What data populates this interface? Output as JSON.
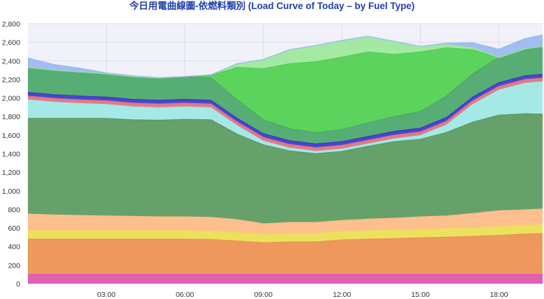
{
  "chart_data": {
    "type": "area",
    "title": "今日用電曲線圖-依燃料類別 (Load Curve of Today – by Fuel Type)",
    "stacked": true,
    "xlabel": "",
    "ylabel": "",
    "ylim": [
      0,
      2800
    ],
    "yticks": [
      0,
      200,
      400,
      600,
      800,
      1000,
      1200,
      1400,
      1600,
      1800,
      2000,
      2200,
      2400,
      2600,
      2800
    ],
    "xlim": [
      0.0,
      19.67
    ],
    "xticks": [
      3,
      6,
      9,
      12,
      15,
      18
    ],
    "xtick_labels": [
      "03:00",
      "06:00",
      "09:00",
      "12:00",
      "15:00",
      "18:00"
    ],
    "grid": true,
    "x": [
      0.0,
      1.0,
      2.0,
      3.0,
      4.0,
      5.0,
      6.0,
      7.0,
      8.0,
      9.0,
      10.0,
      11.0,
      12.0,
      13.0,
      14.0,
      15.0,
      16.0,
      17.0,
      18.0,
      19.0,
      19.67
    ],
    "series": [
      {
        "color": "#dd55aa",
        "values": [
          100,
          100,
          100,
          100,
          100,
          100,
          100,
          100,
          100,
          100,
          100,
          100,
          100,
          100,
          100,
          100,
          100,
          100,
          100,
          100,
          100
        ]
      },
      {
        "color": "#ee9050",
        "values": [
          380,
          380,
          380,
          380,
          380,
          380,
          380,
          375,
          360,
          340,
          350,
          350,
          370,
          380,
          385,
          395,
          400,
          410,
          420,
          435,
          440
        ]
      },
      {
        "color": "#ece050",
        "values": [
          90,
          90,
          90,
          90,
          90,
          90,
          90,
          90,
          90,
          90,
          90,
          90,
          90,
          90,
          90,
          90,
          90,
          90,
          95,
          95,
          95
        ]
      },
      {
        "color": "#ffbb85",
        "values": [
          180,
          170,
          165,
          160,
          155,
          150,
          150,
          150,
          140,
          115,
          120,
          120,
          120,
          125,
          130,
          135,
          140,
          155,
          170,
          165,
          170
        ]
      },
      {
        "color": "#5a9a5e",
        "values": [
          1030,
          1040,
          1045,
          1050,
          1040,
          1040,
          1050,
          1050,
          920,
          850,
          770,
          740,
          745,
          785,
          825,
          835,
          900,
          985,
          1030,
          1035,
          1020
        ]
      },
      {
        "color": "#9ee8e4",
        "values": [
          200,
          175,
          160,
          150,
          140,
          135,
          135,
          130,
          90,
          40,
          30,
          25,
          25,
          25,
          30,
          40,
          80,
          190,
          270,
          330,
          350
        ]
      },
      {
        "color": "#e07080",
        "values": [
          40,
          40,
          40,
          40,
          40,
          40,
          40,
          40,
          40,
          40,
          40,
          40,
          40,
          40,
          40,
          40,
          40,
          40,
          40,
          40,
          40
        ]
      },
      {
        "color": "#3838c8",
        "values": [
          40,
          40,
          40,
          40,
          40,
          40,
          40,
          40,
          40,
          40,
          40,
          40,
          40,
          40,
          40,
          40,
          40,
          40,
          40,
          40,
          40
        ]
      },
      {
        "color": "#4aa868",
        "values": [
          270,
          265,
          260,
          250,
          245,
          240,
          245,
          240,
          200,
          150,
          130,
          120,
          130,
          145,
          160,
          180,
          230,
          250,
          270,
          290,
          300
        ]
      },
      {
        "color": "#4fd04f",
        "values": [
          0,
          0,
          0,
          0,
          0,
          0,
          0,
          30,
          350,
          550,
          700,
          765,
          780,
          765,
          670,
          640,
          520,
          260,
          0,
          0,
          0
        ]
      },
      {
        "color": "#9ce89c",
        "values": [
          0,
          0,
          0,
          0,
          0,
          0,
          0,
          5,
          40,
          100,
          150,
          175,
          180,
          170,
          140,
          60,
          35,
          20,
          0,
          0,
          0
        ]
      },
      {
        "color": "#9ab8f0",
        "values": [
          100,
          60,
          40,
          10,
          10,
          5,
          0,
          0,
          0,
          0,
          0,
          0,
          0,
          0,
          0,
          0,
          15,
          55,
          90,
          110,
          125
        ]
      }
    ]
  }
}
